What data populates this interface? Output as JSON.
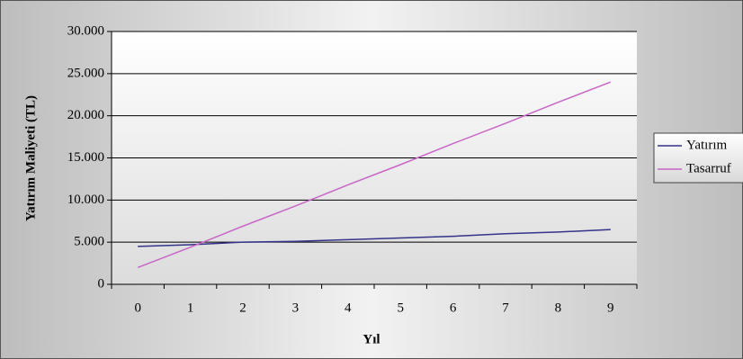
{
  "chart_data": {
    "type": "line",
    "x_label": "Yıl",
    "y_label": "Yatırım Maliyeti (TL)",
    "categories": [
      "0",
      "1",
      "2",
      "3",
      "4",
      "5",
      "6",
      "7",
      "8",
      "9"
    ],
    "series": [
      {
        "name": "Yatırım",
        "color": "#33338a",
        "values": [
          4500,
          4700,
          5000,
          5100,
          5300,
          5500,
          5700,
          6000,
          6200,
          6500
        ]
      },
      {
        "name": "Tasarruf",
        "color": "#c866c8",
        "values": [
          2000,
          4400,
          6900,
          9300,
          11800,
          14200,
          16700,
          19100,
          21600,
          24000
        ]
      }
    ],
    "ylim": [
      0,
      30000
    ],
    "yticks": [
      0,
      {
        "value": 5000,
        "label": "5.000"
      },
      {
        "value": 10000,
        "label": "10.000"
      },
      {
        "value": 15000,
        "label": "15.000"
      },
      {
        "value": 20000,
        "label": "20.000"
      },
      {
        "value": 25000,
        "label": "25.000"
      },
      {
        "value": 30000,
        "label": "30.000"
      }
    ],
    "grid": true,
    "legend": "right"
  }
}
